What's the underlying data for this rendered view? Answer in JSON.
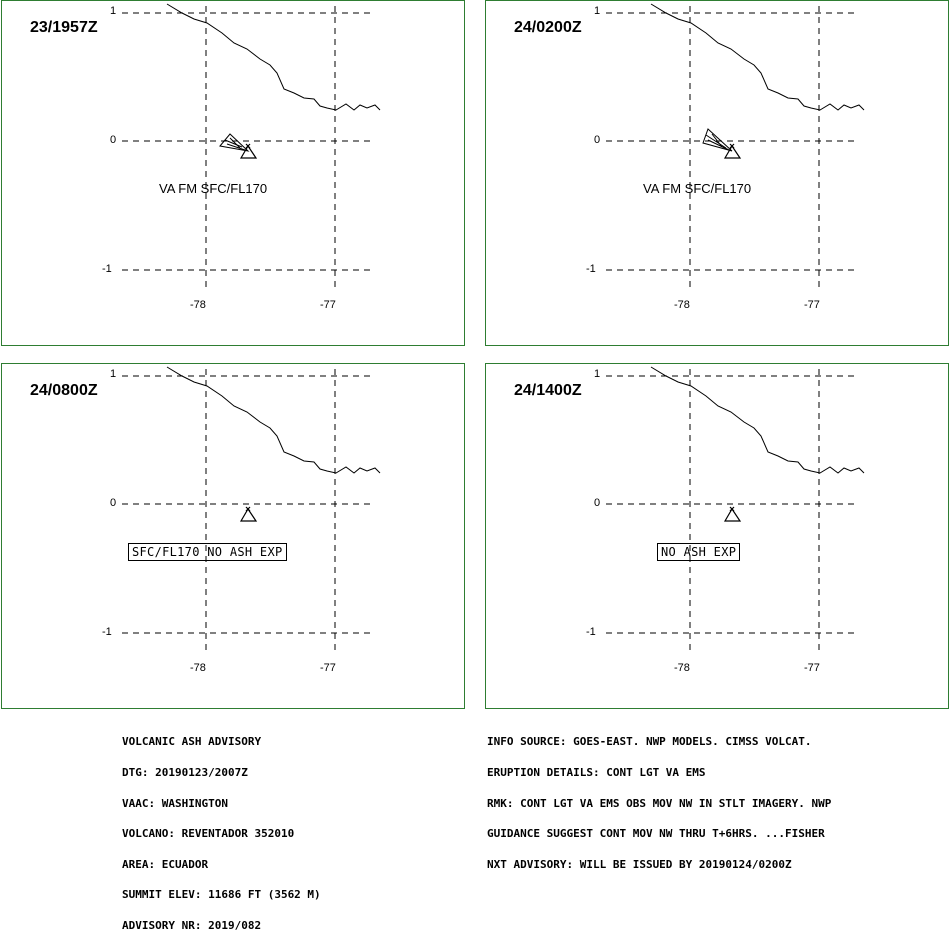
{
  "axis": {
    "lat_labels": [
      "1",
      "0",
      "-1"
    ],
    "lon_labels": [
      "-78",
      "-77"
    ]
  },
  "panels": [
    {
      "time": "23/1957Z",
      "label": "VA FM SFC/FL170",
      "label_boxed": false,
      "ash_plume": true
    },
    {
      "time": "24/0200Z",
      "label": "VA FM SFC/FL170",
      "label_boxed": false,
      "ash_plume": true
    },
    {
      "time": "24/0800Z",
      "label": "SFC/FL170 NO ASH EXP",
      "label_boxed": true,
      "ash_plume": false
    },
    {
      "time": "24/1400Z",
      "label": "NO ASH EXP",
      "label_boxed": true,
      "ash_plume": false
    }
  ],
  "advisory": {
    "left_lines": [
      "VOLCANIC ASH ADVISORY",
      "DTG: 20190123/2007Z",
      "VAAC: WASHINGTON",
      "VOLCANO: REVENTADOR 352010",
      "AREA: ECUADOR",
      "SUMMIT ELEV: 11686 FT (3562 M)",
      "ADVISORY NR: 2019/082"
    ],
    "right_lines": [
      "INFO SOURCE: GOES-EAST. NWP MODELS. CIMSS VOLCAT.",
      "ERUPTION DETAILS: CONT LGT VA EMS",
      "RMK: CONT LGT VA EMS OBS MOV NW IN STLT IMAGERY. NWP",
      "GUIDANCE SUGGEST CONT MOV NW THRU T+6HRS. ...FISHER",
      "NXT ADVISORY: WILL BE ISSUED BY 20190124/0200Z"
    ]
  },
  "colors": {
    "panel_border": "#2e7d32",
    "lines": "#000000"
  }
}
